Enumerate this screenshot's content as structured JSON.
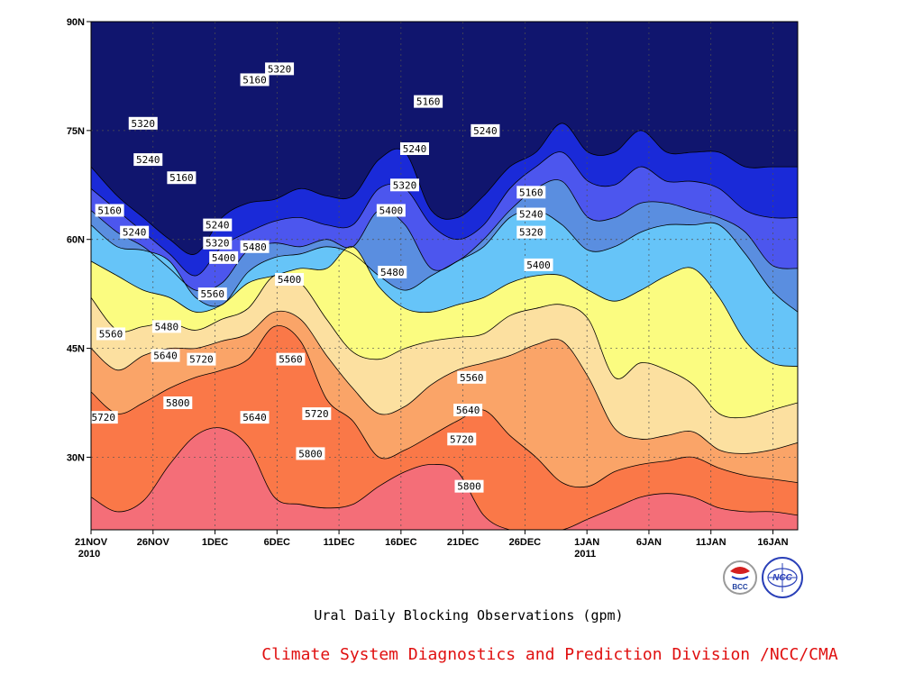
{
  "chart_data": {
    "type": "heatmap",
    "title": "Ural Daily Blocking Observations (gpm)",
    "credit": "Climate System Diagnostics and Prediction Division /NCC/CMA",
    "logos": [
      "BCC",
      "NCC"
    ],
    "x_range": [
      "2010-11-21",
      "2011-01-17"
    ],
    "ylim": [
      20,
      90
    ],
    "y_ticks": [
      "30N",
      "45N",
      "60N",
      "75N",
      "90N"
    ],
    "x_ticks": [
      {
        "label": "21NOV",
        "sub": "2010"
      },
      {
        "label": "26NOV",
        "sub": ""
      },
      {
        "label": "1DEC",
        "sub": ""
      },
      {
        "label": "6DEC",
        "sub": ""
      },
      {
        "label": "11DEC",
        "sub": ""
      },
      {
        "label": "16DEC",
        "sub": ""
      },
      {
        "label": "21DEC",
        "sub": ""
      },
      {
        "label": "26DEC",
        "sub": ""
      },
      {
        "label": "1JAN",
        "sub": "2011"
      },
      {
        "label": "6JAN",
        "sub": ""
      },
      {
        "label": "11JAN",
        "sub": ""
      },
      {
        "label": "16JAN",
        "sub": ""
      }
    ],
    "grid": true,
    "contour_levels": [
      5160,
      5240,
      5320,
      5400,
      5480,
      5560,
      5640,
      5720,
      5800
    ],
    "level_colors": [
      "#10156e",
      "#1a2ad8",
      "#4c56ee",
      "#5a8ee0",
      "#66c4f8",
      "#fbfc80",
      "#fce0a0",
      "#faa468",
      "#fa7848",
      "#f46e78"
    ],
    "contour_lines_deg": {
      "5800": [
        24.5,
        22.5,
        24,
        29,
        33,
        34,
        31.5,
        24.5,
        23.5,
        23,
        23.5,
        26,
        28,
        29,
        28,
        22,
        20,
        20,
        20,
        21.5,
        23,
        24.5,
        25,
        24.5,
        23,
        22.5,
        22.5,
        22
      ],
      "5720": [
        39,
        36,
        37.5,
        39.5,
        41,
        42,
        43.5,
        48,
        46,
        38,
        35,
        30,
        31,
        33,
        35,
        36.5,
        33,
        30,
        26.5,
        26,
        28,
        29,
        29.5,
        30,
        28.5,
        27.5,
        27,
        26.5
      ],
      "5640": [
        45,
        42,
        44,
        45,
        45,
        46,
        47,
        50,
        49,
        44,
        39.5,
        36,
        37,
        40,
        42,
        43,
        44,
        45.5,
        46,
        41,
        34,
        32.5,
        33,
        33.5,
        31,
        30.5,
        31,
        32
      ],
      "5560": [
        52,
        47.5,
        48,
        48.5,
        47.5,
        49,
        50.5,
        55,
        54,
        49,
        44.5,
        43.5,
        45,
        46,
        46.5,
        47,
        49.5,
        50.5,
        51,
        49,
        41,
        43,
        42,
        40,
        36,
        35.5,
        36.5,
        37.5
      ],
      "5480": [
        57,
        55,
        53,
        52,
        50,
        51,
        54,
        55,
        56,
        56,
        59,
        53.5,
        50.5,
        50,
        51,
        52,
        54,
        55,
        55,
        53,
        51.5,
        53,
        55,
        56,
        52,
        46,
        43,
        42.5
      ],
      "5400": [
        62,
        59,
        58.5,
        57,
        52,
        51,
        55.5,
        57.5,
        58,
        59,
        58,
        55,
        53,
        55,
        57,
        59,
        63,
        64,
        62,
        58.5,
        59,
        61,
        62,
        62,
        62,
        58,
        53,
        50
      ],
      "5320": [
        64,
        61,
        59,
        56,
        53,
        54,
        58.5,
        59.5,
        59,
        60,
        59,
        64,
        62,
        56,
        57,
        60,
        64,
        67,
        68,
        63,
        63,
        65,
        65,
        64,
        63,
        61,
        56.5,
        56
      ],
      "5240": [
        67,
        64,
        61,
        58,
        55,
        59,
        61,
        62.5,
        63,
        62,
        62,
        67,
        67,
        62,
        60,
        62,
        67,
        70,
        72,
        68,
        67.5,
        70,
        68,
        68,
        67,
        64,
        63,
        63
      ],
      "5160": [
        70,
        66,
        63,
        60,
        58,
        63,
        65,
        65.5,
        67,
        66,
        66,
        71,
        72,
        64,
        63,
        66,
        70,
        72,
        76,
        72,
        72,
        75,
        72,
        72,
        72,
        70,
        70,
        70
      ]
    },
    "contour_labels": [
      {
        "value": "5320",
        "day": 4.2,
        "lat": 76
      },
      {
        "value": "5240",
        "day": 4.6,
        "lat": 71
      },
      {
        "value": "5160",
        "day": 7.3,
        "lat": 68.5
      },
      {
        "value": "5160",
        "day": 1.5,
        "lat": 64
      },
      {
        "value": "5240",
        "day": 3.5,
        "lat": 61
      },
      {
        "value": "5160",
        "day": 13.2,
        "lat": 82
      },
      {
        "value": "5320",
        "day": 15.2,
        "lat": 83.5
      },
      {
        "value": "5240",
        "day": 10.2,
        "lat": 62
      },
      {
        "value": "5320",
        "day": 10.2,
        "lat": 59.5
      },
      {
        "value": "5400",
        "day": 10.7,
        "lat": 57.5
      },
      {
        "value": "5480",
        "day": 13.2,
        "lat": 59
      },
      {
        "value": "5400",
        "day": 16.0,
        "lat": 54.5
      },
      {
        "value": "5560",
        "day": 9.8,
        "lat": 52.5
      },
      {
        "value": "5480",
        "day": 6.1,
        "lat": 48
      },
      {
        "value": "5560",
        "day": 1.6,
        "lat": 47
      },
      {
        "value": "5640",
        "day": 6.0,
        "lat": 44
      },
      {
        "value": "5720",
        "day": 8.9,
        "lat": 43.5
      },
      {
        "value": "5560",
        "day": 16.1,
        "lat": 43.5
      },
      {
        "value": "5720",
        "day": 1.0,
        "lat": 35.5
      },
      {
        "value": "5800",
        "day": 7.0,
        "lat": 37.5
      },
      {
        "value": "5640",
        "day": 13.2,
        "lat": 35.5
      },
      {
        "value": "5720",
        "day": 18.2,
        "lat": 36
      },
      {
        "value": "5800",
        "day": 17.7,
        "lat": 30.5
      },
      {
        "value": "5400",
        "day": 24.2,
        "lat": 64
      },
      {
        "value": "5480",
        "day": 24.3,
        "lat": 55.5
      },
      {
        "value": "5320",
        "day": 25.3,
        "lat": 67.5
      },
      {
        "value": "5240",
        "day": 26.1,
        "lat": 72.5
      },
      {
        "value": "5160",
        "day": 27.2,
        "lat": 79
      },
      {
        "value": "5240",
        "day": 31.8,
        "lat": 75
      },
      {
        "value": "5560",
        "day": 30.7,
        "lat": 41
      },
      {
        "value": "5640",
        "day": 30.4,
        "lat": 36.5
      },
      {
        "value": "5720",
        "day": 29.9,
        "lat": 32.5
      },
      {
        "value": "5800",
        "day": 30.5,
        "lat": 26
      },
      {
        "value": "5160",
        "day": 35.5,
        "lat": 66.5
      },
      {
        "value": "5240",
        "day": 35.5,
        "lat": 63.5
      },
      {
        "value": "5320",
        "day": 35.5,
        "lat": 61
      },
      {
        "value": "5400",
        "day": 36.1,
        "lat": 56.5
      }
    ]
  }
}
